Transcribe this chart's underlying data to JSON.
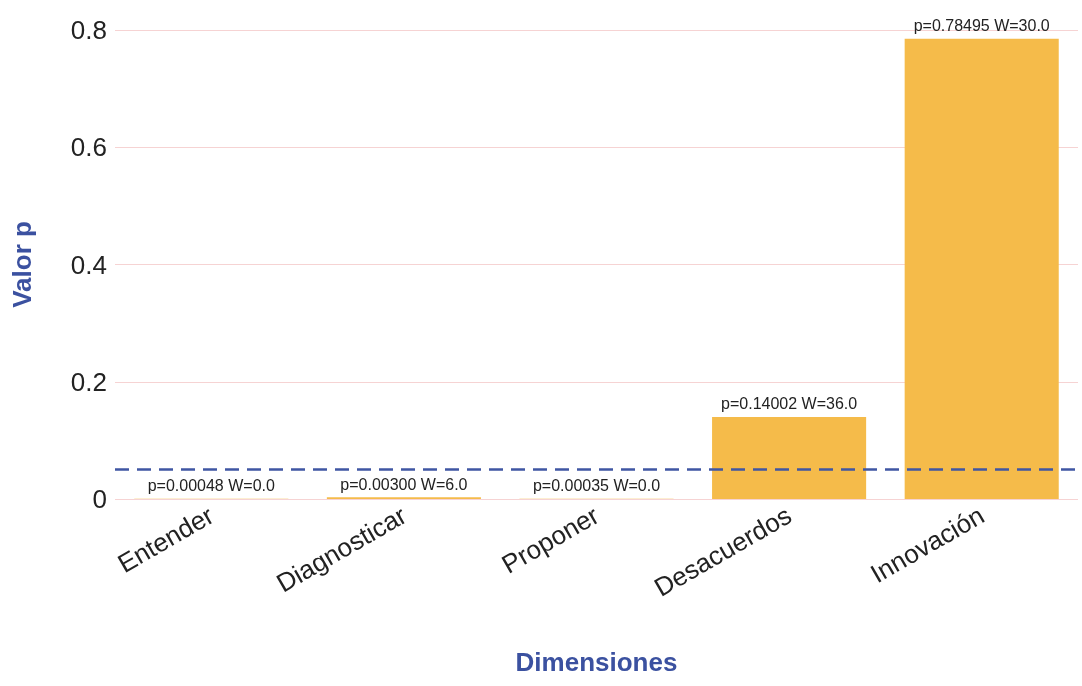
{
  "chart_data": {
    "type": "bar",
    "xlabel": "Dimensiones",
    "ylabel": "Valor p",
    "categories": [
      "Entender",
      "Diagnosticar",
      "Proponer",
      "Desacuerdos",
      "Innovación"
    ],
    "values": [
      0.00048,
      0.003,
      0.00035,
      0.14002,
      0.78495
    ],
    "value_labels": [
      "p=0.00048 W=0.0",
      "p=0.00300 W=6.0",
      "p=0.00035 W=0.0",
      "p=0.14002 W=36.0",
      "p=0.78495 W=30.0"
    ],
    "color": "#f5bb4a",
    "ylim": [
      0,
      0.8
    ],
    "yticks": [
      0,
      0.2,
      0.4,
      0.6,
      0.8
    ],
    "grid": "y",
    "ref_lines": [
      {
        "axis": "y",
        "value": 0.05,
        "color": "#3f56a3",
        "line_style": "dashed"
      }
    ]
  }
}
